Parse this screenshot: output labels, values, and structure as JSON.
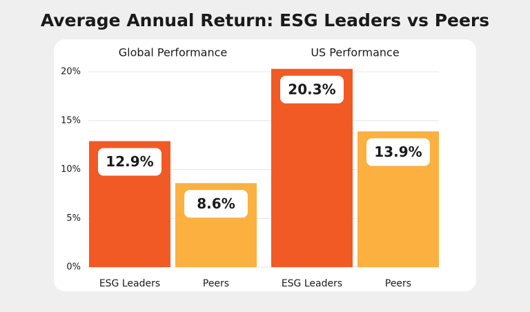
{
  "chart_data": {
    "type": "bar",
    "title": "Average Annual Return: ESG Leaders vs Peers",
    "categories": [
      "Global Performance",
      "US Performance"
    ],
    "series": [
      {
        "name": "ESG Leaders",
        "color": "#f15a24",
        "values": [
          12.9,
          20.3
        ],
        "value_labels": [
          "12.9%",
          "20.3%"
        ]
      },
      {
        "name": "Peers",
        "color": "#fbb040",
        "values": [
          8.6,
          13.9
        ],
        "value_labels": [
          "8.6%",
          "13.9%"
        ]
      }
    ],
    "ylim": [
      0,
      20
    ],
    "yticks": [
      {
        "value": 0,
        "label": "0%"
      },
      {
        "value": 5,
        "label": "5%"
      },
      {
        "value": 10,
        "label": "10%"
      },
      {
        "value": 15,
        "label": "15%"
      },
      {
        "value": 20,
        "label": "20%"
      }
    ],
    "grid": true
  }
}
